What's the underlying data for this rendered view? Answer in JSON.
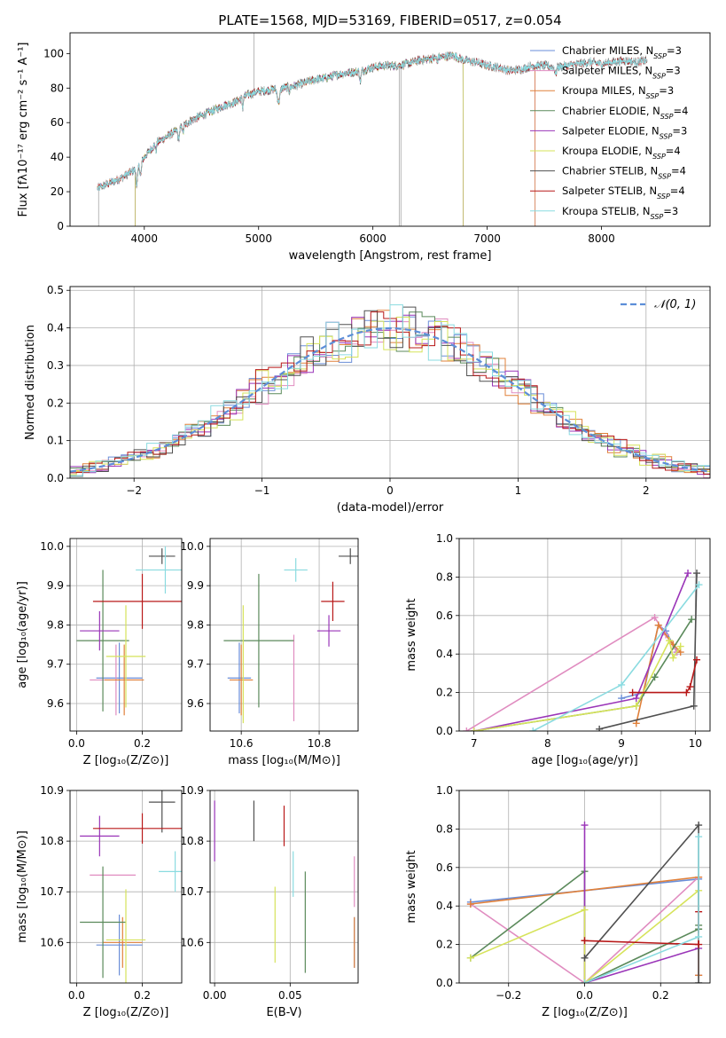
{
  "colors": {
    "chabrier_miles": "#6a8ed8",
    "salpeter_miles": "#e08cc0",
    "kroupa_miles": "#e0803a",
    "chabrier_elodie": "#5b8a5b",
    "salpeter_elodie": "#9a35b8",
    "kroupa_elodie": "#d6e35a",
    "chabrier_stelib": "#505050",
    "salpeter_stelib": "#b81818",
    "kroupa_stelib": "#8adbe0",
    "normal_curve": "#5c8ed8"
  },
  "chart_data": [
    {
      "id": "spectrum",
      "type": "line",
      "title": "PLATE=1568, MJD=53169, FIBERID=0517, z=0.054",
      "xlabel": "wavelength [Angstrom, rest frame]",
      "ylabel": "Flux [fλ10⁻¹⁷ erg cm⁻² s⁻¹ A⁻¹]",
      "xlim": [
        3350,
        8950
      ],
      "ylim": [
        0,
        112
      ],
      "xticks": [
        4000,
        5000,
        6000,
        7000,
        8000
      ],
      "yticks": [
        0,
        20,
        40,
        60,
        80,
        100
      ],
      "grid": false,
      "legend_position": "upper-right",
      "legend": [
        {
          "key": "chabrier_miles",
          "label": "Chabrier MILES, N",
          "sub": "SSP",
          "suffix": "=3"
        },
        {
          "key": "salpeter_miles",
          "label": "Salpeter MILES, N",
          "sub": "SSP",
          "suffix": "=3"
        },
        {
          "key": "kroupa_miles",
          "label": "Kroupa MILES, N",
          "sub": "SSP",
          "suffix": "=3"
        },
        {
          "key": "chabrier_elodie",
          "label": "Chabrier ELODIE, N",
          "sub": "SSP",
          "suffix": "=4"
        },
        {
          "key": "salpeter_elodie",
          "label": "Salpeter ELODIE, N",
          "sub": "SSP",
          "suffix": "=3"
        },
        {
          "key": "kroupa_elodie",
          "label": "Kroupa ELODIE, N",
          "sub": "SSP",
          "suffix": "=4"
        },
        {
          "key": "chabrier_stelib",
          "label": "Chabrier STELIB, N",
          "sub": "SSP",
          "suffix": "=4"
        },
        {
          "key": "salpeter_stelib",
          "label": "Salpeter STELIB, N",
          "sub": "SSP",
          "suffix": "=4"
        },
        {
          "key": "kroupa_stelib",
          "label": "Kroupa STELIB, N",
          "sub": "SSP",
          "suffix": "=3"
        }
      ],
      "data_continuum": [
        [
          3590,
          22
        ],
        [
          3700,
          25
        ],
        [
          3800,
          28
        ],
        [
          3900,
          32
        ],
        [
          4000,
          40
        ],
        [
          4100,
          48
        ],
        [
          4200,
          52
        ],
        [
          4300,
          56
        ],
        [
          4400,
          61
        ],
        [
          4500,
          64
        ],
        [
          4600,
          67
        ],
        [
          4700,
          70
        ],
        [
          4800,
          72
        ],
        [
          4900,
          76
        ],
        [
          5000,
          78
        ],
        [
          5100,
          79
        ],
        [
          5200,
          80
        ],
        [
          5300,
          81
        ],
        [
          5400,
          83
        ],
        [
          5500,
          85
        ],
        [
          5600,
          86
        ],
        [
          5700,
          88
        ],
        [
          5800,
          89
        ],
        [
          5900,
          90
        ],
        [
          6000,
          92
        ],
        [
          6100,
          93
        ],
        [
          6200,
          93
        ],
        [
          6300,
          94
        ],
        [
          6400,
          96
        ],
        [
          6500,
          97
        ],
        [
          6600,
          98
        ],
        [
          6700,
          99
        ],
        [
          6800,
          96
        ],
        [
          6900,
          95
        ],
        [
          7000,
          93
        ],
        [
          7100,
          92
        ],
        [
          7200,
          90
        ],
        [
          7300,
          91
        ],
        [
          7400,
          93
        ],
        [
          7500,
          93
        ],
        [
          7600,
          92
        ],
        [
          7700,
          93
        ],
        [
          7800,
          94
        ],
        [
          7900,
          95
        ],
        [
          8000,
          94
        ],
        [
          8100,
          95
        ],
        [
          8200,
          96
        ],
        [
          8300,
          95
        ],
        [
          8400,
          96
        ]
      ],
      "model_end_wavelengths": {
        "chabrier_miles": 7420,
        "salpeter_miles": 7420,
        "kroupa_miles": 7420,
        "chabrier_elodie": 6790,
        "salpeter_elodie": 6790,
        "kroupa_elodie": 6790,
        "chabrier_stelib": 8400,
        "salpeter_stelib": 8400,
        "kroupa_stelib": 8400
      },
      "model_start_wavelengths": {
        "chabrier_miles": 3590,
        "salpeter_miles": 3590,
        "kroupa_miles": 3590,
        "chabrier_elodie": 3920,
        "salpeter_elodie": 3920,
        "kroupa_elodie": 3920,
        "chabrier_stelib": 3590,
        "salpeter_stelib": 3590,
        "kroupa_stelib": 3590
      }
    },
    {
      "id": "residuals",
      "type": "line",
      "xlabel": "(data-model)/error",
      "ylabel": "Normed distribution",
      "xlim": [
        -2.5,
        2.5
      ],
      "ylim": [
        0,
        0.51
      ],
      "xticks": [
        -2,
        -1,
        0,
        1,
        2
      ],
      "yticks": [
        0.0,
        0.1,
        0.2,
        0.3,
        0.4,
        0.5
      ],
      "grid": true,
      "legend_position": "upper-right",
      "legend": [
        {
          "key": "normal_curve",
          "label": "𝒩(0, 1)"
        }
      ],
      "histogram_bin_width": 0.1,
      "histogram_amplitudes": [
        0.025,
        0.05,
        0.075,
        0.1,
        0.035,
        0.06,
        0.02,
        0.045,
        0.03
      ]
    },
    {
      "id": "age_vs_Z",
      "type": "scatter",
      "xlabel": "Z [log₁₀(Z/Z⊙)]",
      "ylabel": "age  [log₁₀(age/yr)]",
      "xlim": [
        -0.02,
        0.32
      ],
      "ylim": [
        9.53,
        10.02
      ],
      "xticks": [
        0.0,
        0.2
      ],
      "yticks": [
        9.6,
        9.7,
        9.8,
        9.9,
        10.0
      ],
      "grid": true,
      "points": [
        {
          "key": "chabrier_miles",
          "x": 0.13,
          "y": 9.665,
          "xerr": 0.07,
          "yerr": 0.09
        },
        {
          "key": "salpeter_miles",
          "x": 0.12,
          "y": 9.66,
          "xerr": 0.08,
          "yerr": 0.09
        },
        {
          "key": "kroupa_miles",
          "x": 0.145,
          "y": 9.66,
          "xerr": 0.06,
          "yerr": 0.09
        },
        {
          "key": "chabrier_elodie",
          "x": 0.08,
          "y": 9.76,
          "xerr": 0.08,
          "yerr": 0.18
        },
        {
          "key": "salpeter_elodie",
          "x": 0.07,
          "y": 9.785,
          "xerr": 0.06,
          "yerr": 0.05
        },
        {
          "key": "kroupa_elodie",
          "x": 0.15,
          "y": 9.72,
          "xerr": 0.06,
          "yerr": 0.13
        },
        {
          "key": "chabrier_stelib",
          "x": 0.26,
          "y": 9.975,
          "xerr": 0.04,
          "yerr": 0.02
        },
        {
          "key": "salpeter_stelib",
          "x": 0.2,
          "y": 9.86,
          "xerr": 0.15,
          "yerr": 0.07
        },
        {
          "key": "kroupa_stelib",
          "x": 0.27,
          "y": 9.94,
          "xerr": 0.09,
          "yerr": 0.06
        }
      ]
    },
    {
      "id": "age_vs_mass",
      "type": "scatter",
      "xlabel": "mass [log₁₀(M/M⊙)]",
      "ylabel": "",
      "xlim": [
        10.52,
        10.9
      ],
      "ylim": [
        9.53,
        10.02
      ],
      "xticks": [
        10.6,
        10.8
      ],
      "yticks": [
        9.6,
        9.7,
        9.8,
        9.9,
        10.0
      ],
      "grid": true,
      "points": [
        {
          "key": "chabrier_miles",
          "x": 10.595,
          "y": 9.665,
          "xerr": 0.03,
          "yerr": 0.09
        },
        {
          "key": "salpeter_miles",
          "x": 10.735,
          "y": 9.665,
          "xerr": 0.0,
          "yerr": 0.11
        },
        {
          "key": "kroupa_miles",
          "x": 10.6,
          "y": 9.66,
          "xerr": 0.03,
          "yerr": 0.09
        },
        {
          "key": "chabrier_elodie",
          "x": 10.645,
          "y": 9.76,
          "xerr": 0.09,
          "yerr": 0.17
        },
        {
          "key": "salpeter_elodie",
          "x": 10.825,
          "y": 9.785,
          "xerr": 0.03,
          "yerr": 0.04
        },
        {
          "key": "kroupa_elodie",
          "x": 10.605,
          "y": 9.7,
          "xerr": 0.0,
          "yerr": 0.15
        },
        {
          "key": "chabrier_stelib",
          "x": 10.88,
          "y": 9.975,
          "xerr": 0.03,
          "yerr": 0.02
        },
        {
          "key": "salpeter_stelib",
          "x": 10.835,
          "y": 9.86,
          "xerr": 0.03,
          "yerr": 0.05
        },
        {
          "key": "kroupa_stelib",
          "x": 10.74,
          "y": 9.94,
          "xerr": 0.03,
          "yerr": 0.03
        }
      ]
    },
    {
      "id": "massweight_vs_age",
      "type": "line",
      "xlabel": "age  [log₁₀(age/yr)]",
      "ylabel": "mass weight",
      "xlim": [
        6.8,
        10.2
      ],
      "ylim": [
        0,
        1.0
      ],
      "xticks": [
        7,
        8,
        9,
        10
      ],
      "yticks": [
        0.0,
        0.2,
        0.4,
        0.6,
        0.8,
        1.0
      ],
      "grid": true,
      "series": [
        {
          "key": "chabrier_miles",
          "x": [
            9.0,
            9.3,
            9.5,
            9.6,
            9.75
          ],
          "y": [
            0.17,
            0.2,
            0.55,
            0.52,
            0.41
          ]
        },
        {
          "key": "salpeter_miles",
          "x": [
            6.9,
            9.45,
            9.6,
            9.75
          ],
          "y": [
            0.0,
            0.59,
            0.5,
            0.41
          ]
        },
        {
          "key": "kroupa_miles",
          "x": [
            9.2,
            9.5,
            9.7,
            9.8
          ],
          "y": [
            0.04,
            0.55,
            0.45,
            0.41
          ]
        },
        {
          "key": "chabrier_elodie",
          "x": [
            7.0,
            9.2,
            9.45,
            9.95
          ],
          "y": [
            0.0,
            0.13,
            0.28,
            0.58
          ]
        },
        {
          "key": "salpeter_elodie",
          "x": [
            7.0,
            9.2,
            9.9
          ],
          "y": [
            0.0,
            0.17,
            0.82
          ]
        },
        {
          "key": "kroupa_elodie",
          "x": [
            7.0,
            9.2,
            9.65,
            9.7,
            9.8
          ],
          "y": [
            0.0,
            0.13,
            0.47,
            0.38,
            0.44
          ]
        },
        {
          "key": "chabrier_stelib",
          "x": [
            8.7,
            9.98,
            10.02
          ],
          "y": [
            0.01,
            0.13,
            0.82
          ]
        },
        {
          "key": "salpeter_stelib",
          "x": [
            9.15,
            9.88,
            9.93,
            10.02
          ],
          "y": [
            0.2,
            0.2,
            0.23,
            0.37
          ]
        },
        {
          "key": "kroupa_stelib",
          "x": [
            7.8,
            9.0,
            10.05
          ],
          "y": [
            0.0,
            0.24,
            0.76
          ]
        }
      ]
    },
    {
      "id": "mass_vs_Z",
      "type": "scatter",
      "xlabel": "Z [log₁₀(Z/Z⊙)]",
      "ylabel": "mass [log₁₀(M/M⊙)]",
      "xlim": [
        -0.02,
        0.32
      ],
      "ylim": [
        10.52,
        10.9
      ],
      "xticks": [
        0.0,
        0.2
      ],
      "yticks": [
        10.6,
        10.7,
        10.8,
        10.9
      ],
      "grid": true,
      "points": [
        {
          "key": "chabrier_miles",
          "x": 0.13,
          "y": 10.595,
          "xerr": 0.07,
          "yerr": 0.06
        },
        {
          "key": "salpeter_miles",
          "x": 0.11,
          "y": 10.733,
          "xerr": 0.07,
          "yerr": 0.0
        },
        {
          "key": "kroupa_miles",
          "x": 0.14,
          "y": 10.6,
          "xerr": 0.06,
          "yerr": 0.05
        },
        {
          "key": "chabrier_elodie",
          "x": 0.08,
          "y": 10.64,
          "xerr": 0.07,
          "yerr": 0.11
        },
        {
          "key": "salpeter_elodie",
          "x": 0.07,
          "y": 10.81,
          "xerr": 0.06,
          "yerr": 0.04
        },
        {
          "key": "kroupa_elodie",
          "x": 0.15,
          "y": 10.605,
          "xerr": 0.06,
          "yerr": 0.1
        },
        {
          "key": "chabrier_stelib",
          "x": 0.26,
          "y": 10.877,
          "xerr": 0.04,
          "yerr": 0.06
        },
        {
          "key": "salpeter_stelib",
          "x": 0.2,
          "y": 10.825,
          "xerr": 0.15,
          "yerr": 0.03
        },
        {
          "key": "kroupa_stelib",
          "x": 0.3,
          "y": 10.74,
          "xerr": 0.05,
          "yerr": 0.04
        }
      ]
    },
    {
      "id": "mass_vs_EBV",
      "type": "scatter",
      "xlabel": "E(B-V)",
      "ylabel": "",
      "xlim": [
        -0.003,
        0.095
      ],
      "ylim": [
        10.52,
        10.9
      ],
      "xticks": [
        0.0,
        0.05
      ],
      "yticks": [
        10.6,
        10.7,
        10.8,
        10.9
      ],
      "grid": true,
      "points": [
        {
          "key": "chabrier_miles",
          "x": 0.0925,
          "y": 10.6,
          "xerr": 0.0,
          "yerr": 0.05
        },
        {
          "key": "salpeter_miles",
          "x": 0.0925,
          "y": 10.72,
          "xerr": 0.0,
          "yerr": 0.05
        },
        {
          "key": "kroupa_miles",
          "x": 0.0925,
          "y": 10.6,
          "xerr": 0.0,
          "yerr": 0.05
        },
        {
          "key": "chabrier_elodie",
          "x": 0.06,
          "y": 10.64,
          "xerr": 0.0,
          "yerr": 0.1
        },
        {
          "key": "salpeter_elodie",
          "x": 0.0,
          "y": 10.82,
          "xerr": 0.0,
          "yerr": 0.06
        },
        {
          "key": "kroupa_elodie",
          "x": 0.04,
          "y": 10.635,
          "xerr": 0.0,
          "yerr": 0.075
        },
        {
          "key": "chabrier_stelib",
          "x": 0.026,
          "y": 10.84,
          "xerr": 0.0,
          "yerr": 0.04
        },
        {
          "key": "salpeter_stelib",
          "x": 0.046,
          "y": 10.83,
          "xerr": 0.0,
          "yerr": 0.04
        },
        {
          "key": "kroupa_stelib",
          "x": 0.052,
          "y": 10.735,
          "xerr": 0.0,
          "yerr": 0.045
        }
      ]
    },
    {
      "id": "massweight_vs_Z",
      "type": "line",
      "xlabel": "Z [log₁₀(Z/Z⊙)]",
      "ylabel": "mass weight",
      "xlim": [
        -0.33,
        0.33
      ],
      "ylim": [
        0,
        1.0
      ],
      "xticks": [
        -0.2,
        0.0,
        0.2
      ],
      "yticks": [
        0.0,
        0.2,
        0.4,
        0.6,
        0.8,
        1.0
      ],
      "grid": true,
      "series": [
        {
          "key": "chabrier_miles",
          "x": [
            -0.3,
            0.3,
            0.3
          ],
          "y": [
            0.42,
            0.54,
            0.04
          ]
        },
        {
          "key": "salpeter_miles",
          "x": [
            -0.3,
            0.0,
            0.3,
            0.3
          ],
          "y": [
            0.41,
            0.0,
            0.55,
            0.04
          ]
        },
        {
          "key": "kroupa_miles",
          "x": [
            -0.3,
            0.3,
            0.3
          ],
          "y": [
            0.41,
            0.55,
            0.04
          ]
        },
        {
          "key": "chabrier_elodie",
          "x": [
            -0.3,
            0.0,
            0.0,
            0.3,
            0.3
          ],
          "y": [
            0.13,
            0.58,
            0.0,
            0.28,
            0.3
          ]
        },
        {
          "key": "salpeter_elodie",
          "x": [
            0.0,
            0.0,
            0.0,
            0.3
          ],
          "y": [
            0.82,
            0.0,
            0.0,
            0.18
          ]
        },
        {
          "key": "kroupa_elodie",
          "x": [
            -0.3,
            0.0,
            0.0,
            0.3
          ],
          "y": [
            0.13,
            0.38,
            0.0,
            0.48
          ]
        },
        {
          "key": "chabrier_stelib",
          "x": [
            0.0,
            0.3,
            0.3
          ],
          "y": [
            0.13,
            0.82,
            0.0
          ]
        },
        {
          "key": "salpeter_stelib",
          "x": [
            0.0,
            0.3,
            0.3
          ],
          "y": [
            0.22,
            0.2,
            0.37
          ]
        },
        {
          "key": "kroupa_stelib",
          "x": [
            0.0,
            0.3,
            0.3
          ],
          "y": [
            0.0,
            0.24,
            0.76
          ]
        }
      ]
    }
  ]
}
